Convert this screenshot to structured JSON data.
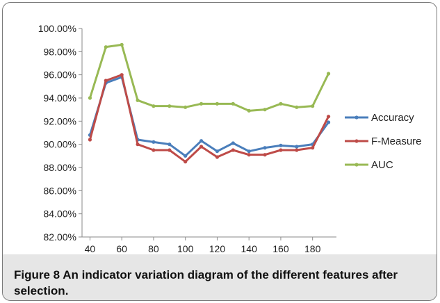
{
  "caption": {
    "text": "Figure 8 An indicator variation diagram of the different features after selection."
  },
  "chart_data": {
    "type": "line",
    "title": "",
    "xlabel": "",
    "ylabel": "",
    "x": [
      40,
      50,
      60,
      70,
      80,
      90,
      100,
      110,
      120,
      130,
      140,
      150,
      160,
      170,
      180,
      190
    ],
    "x_ticks": [
      "40",
      "60",
      "80",
      "100",
      "120",
      "140",
      "160",
      "180"
    ],
    "y_ticks": [
      "82.00%",
      "84.00%",
      "86.00%",
      "88.00%",
      "90.00%",
      "92.00%",
      "94.00%",
      "96.00%",
      "98.00%",
      "100.00%"
    ],
    "ylim": [
      82,
      100
    ],
    "grid": false,
    "legend_position": "right",
    "series": [
      {
        "name": "Accuracy",
        "color": "#4a7ebb",
        "values": [
          90.8,
          95.3,
          95.8,
          90.4,
          90.2,
          90.0,
          89.0,
          90.3,
          89.4,
          90.1,
          89.4,
          89.7,
          89.9,
          89.8,
          90.0,
          91.9
        ]
      },
      {
        "name": "F-Measure",
        "color": "#be4b48",
        "values": [
          90.4,
          95.5,
          96.0,
          90.0,
          89.5,
          89.5,
          88.5,
          89.8,
          88.9,
          89.5,
          89.1,
          89.1,
          89.5,
          89.5,
          89.7,
          92.4
        ]
      },
      {
        "name": "AUC",
        "color": "#98b954",
        "values": [
          94.0,
          98.4,
          98.6,
          93.8,
          93.3,
          93.3,
          93.2,
          93.5,
          93.5,
          93.5,
          92.9,
          93.0,
          93.5,
          93.2,
          93.3,
          96.1
        ]
      }
    ]
  }
}
